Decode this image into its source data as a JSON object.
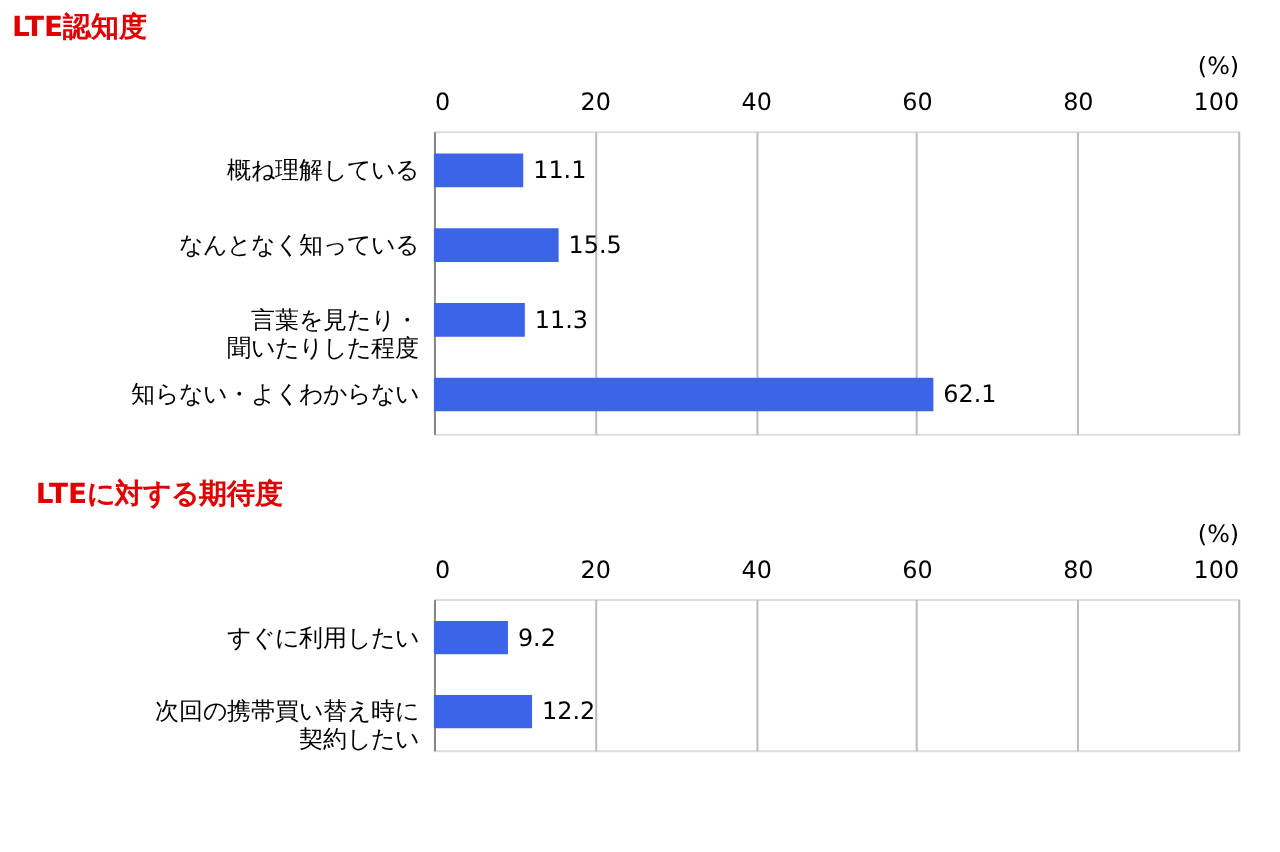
{
  "chart_data": [
    {
      "type": "bar",
      "orientation": "horizontal",
      "title": "LTE認知度",
      "xlabel": "(%)",
      "categories": [
        "概ね理解している",
        "なんとなく知っている",
        "言葉を見たり・聞いたりした程度",
        "知らない・よくわからない"
      ],
      "values": [
        11.1,
        15.5,
        11.3,
        62.1
      ],
      "color": "#3c64e6",
      "xlim": [
        0,
        100
      ],
      "xticks": [
        0,
        20,
        40,
        60,
        80,
        100
      ],
      "grid": "x",
      "data_labels": true
    },
    {
      "type": "bar",
      "orientation": "horizontal",
      "title": "LTEに対する期待度",
      "xlabel": "(%)",
      "categories": [
        "すぐに利用したい",
        "次回の携帯買い替え時に契約したい"
      ],
      "values": [
        9.2,
        12.2
      ],
      "color": "#3c64e6",
      "xlim": [
        0,
        100
      ],
      "xticks": [
        0,
        20,
        40,
        60,
        80,
        100
      ],
      "grid": "x",
      "data_labels": true
    }
  ]
}
